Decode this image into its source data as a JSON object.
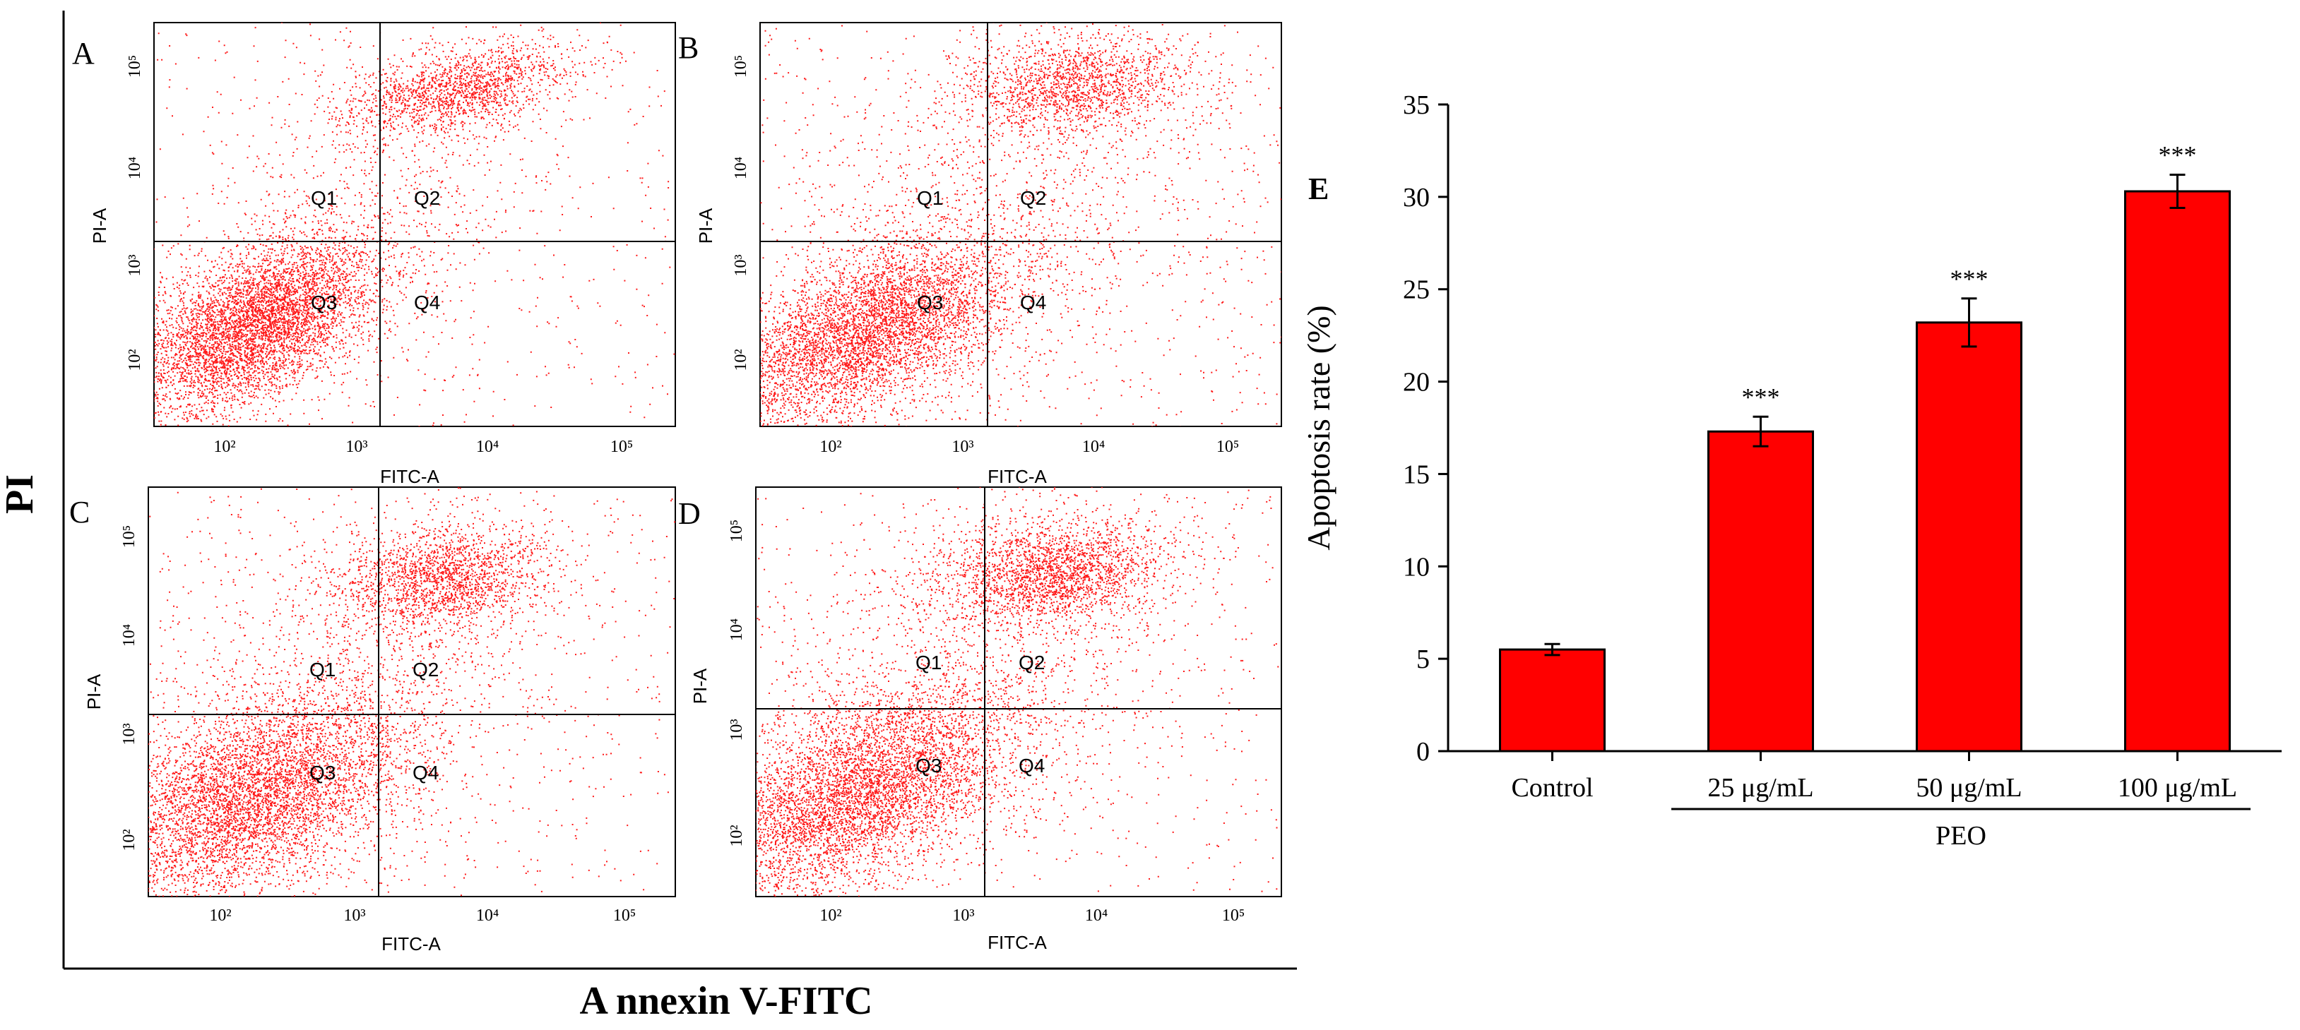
{
  "figure": {
    "left_axis_label": "PI",
    "bottom_axis_label": "A nnexin V-FITC"
  },
  "flow_panels": [
    {
      "letter": "A",
      "quadrants": {
        "q1": "Q1",
        "q2": "Q2",
        "q3": "Q3",
        "q4": "Q4"
      },
      "xlabel": "FITC-A",
      "ylabel": "PI-A",
      "ticks": [
        "10²",
        "10³",
        "10⁴",
        "10⁵"
      ]
    },
    {
      "letter": "B",
      "quadrants": {
        "q1": "Q1",
        "q2": "Q2",
        "q3": "Q3",
        "q4": "Q4"
      },
      "xlabel": "FITC-A",
      "ylabel": "PI-A",
      "ticks": [
        "10²",
        "10³",
        "10⁴",
        "10⁵"
      ]
    },
    {
      "letter": "C",
      "quadrants": {
        "q1": "Q1",
        "q2": "Q2",
        "q3": "Q3",
        "q4": "Q4"
      },
      "xlabel": "FITC-A",
      "ylabel": "PI-A",
      "ticks": [
        "10²",
        "10³",
        "10⁴",
        "10⁵"
      ]
    },
    {
      "letter": "D",
      "quadrants": {
        "q1": "Q1",
        "q2": "Q2",
        "q3": "Q3",
        "q4": "Q4"
      },
      "xlabel": "FITC-A",
      "ylabel": "PI-A",
      "ticks": [
        "10²",
        "10³",
        "10⁴",
        "10⁵"
      ]
    }
  ],
  "chart_data": {
    "type": "bar",
    "panel_letter": "E",
    "title": "",
    "xlabel": "",
    "ylabel": "Apoptosis rate (%)",
    "ylim": [
      0,
      35
    ],
    "yticks": [
      0,
      5,
      10,
      15,
      20,
      25,
      30,
      35
    ],
    "categories": [
      "Control",
      "25 μg/mL",
      "50 μg/mL",
      "100 μg/mL"
    ],
    "values": [
      5.5,
      17.3,
      23.2,
      30.3
    ],
    "errors": [
      0.3,
      0.8,
      1.3,
      0.9
    ],
    "significance": [
      "",
      "***",
      "***",
      "***"
    ],
    "group_label": "PEO",
    "bar_color": "#ff0000"
  }
}
